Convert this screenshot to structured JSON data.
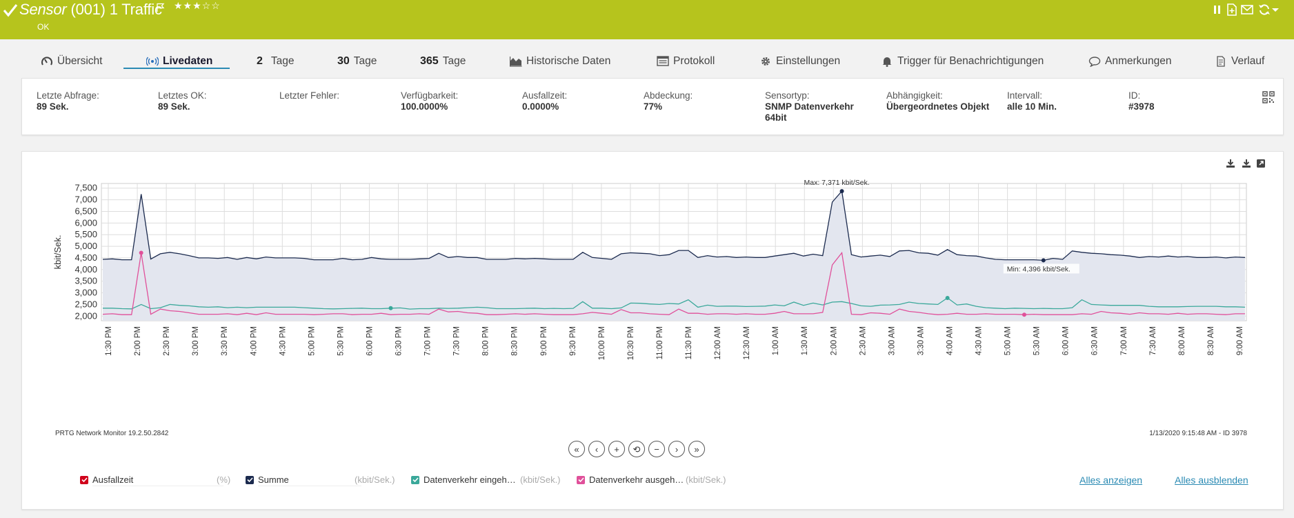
{
  "header": {
    "title_type": "Sensor",
    "title_name": "(001) 1 Traffic",
    "stars": "★★★☆☆",
    "status": "OK",
    "icons": [
      "check-icon",
      "flag-icon",
      "pause-icon",
      "add-page-icon",
      "mail-icon",
      "refresh-icon",
      "dropdown-caret-icon"
    ],
    "color": "#b6c41d"
  },
  "tabs": [
    {
      "label": "Übersicht",
      "icon": "gauge-icon"
    },
    {
      "label": "Livedaten",
      "icon": "live-icon",
      "active": true
    },
    {
      "num": "2",
      "label": "Tage"
    },
    {
      "num": "30",
      "label": "Tage"
    },
    {
      "num": "365",
      "label": "Tage"
    },
    {
      "label": "Historische Daten",
      "icon": "area-chart-icon"
    },
    {
      "label": "Protokoll",
      "icon": "log-icon"
    },
    {
      "label": "Einstellungen",
      "icon": "gear-icon"
    },
    {
      "label": "Trigger für Benachrichtigungen",
      "icon": "bell-icon"
    },
    {
      "label": "Anmerkungen",
      "icon": "comment-icon"
    },
    {
      "label": "Verlauf",
      "icon": "history-icon"
    }
  ],
  "info": [
    {
      "label": "Letzte Abfrage:",
      "value": "89 Sek."
    },
    {
      "label": "Letztes OK:",
      "value": "89 Sek."
    },
    {
      "label": "Letzter Fehler:",
      "value": ""
    },
    {
      "label": "Verfügbarkeit:",
      "value": "100.0000%"
    },
    {
      "label": "Ausfallzeit:",
      "value": "0.0000%"
    },
    {
      "label": "Abdeckung:",
      "value": "77%"
    },
    {
      "label": "Sensortyp:",
      "value": "SNMP Datenverkehr 64bit"
    },
    {
      "label": "Abhängigkeit:",
      "value": "Übergeordnetes Objekt"
    },
    {
      "label": "Intervall:",
      "value": "alle 10 Min."
    },
    {
      "label": "ID:",
      "value": "#3978"
    }
  ],
  "graph": {
    "footer_left": "PRTG Network Monitor 19.2.50.2842",
    "footer_right": "1/13/2020 9:15:48 AM - ID 3978",
    "nav_buttons": [
      "«",
      "‹",
      "+",
      "⟲",
      "−",
      "›",
      "»"
    ]
  },
  "legend": [
    {
      "name": "Ausfallzeit",
      "unit": "(%)",
      "color": "#d0021b"
    },
    {
      "name": "Summe",
      "unit": "(kbit/Sek.)",
      "color": "#1b2a4e"
    },
    {
      "name": "Datenverkehr eingeh…",
      "unit": "(kbit/Sek.)",
      "color": "#3aa89a"
    },
    {
      "name": "Datenverkehr ausgeh…",
      "unit": "(kbit/Sek.)",
      "color": "#e0509a"
    }
  ],
  "links": {
    "show_all": "Alles anzeigen",
    "hide_all": "Alles ausblenden"
  },
  "chart_data": {
    "type": "area",
    "ylabel": "kbit/Sek.",
    "ylim": [
      1800,
      7700
    ],
    "yticks": [
      2000,
      2500,
      3000,
      3500,
      4000,
      4500,
      5000,
      5500,
      6000,
      6500,
      7000,
      7500
    ],
    "ytick_labels": [
      "2,000",
      "2,500",
      "3,000",
      "3,500",
      "4,000",
      "4,500",
      "5,000",
      "5,500",
      "6,000",
      "6,500",
      "7,000",
      "7,500"
    ],
    "xticks": [
      "1:30 PM",
      "2:00 PM",
      "2:30 PM",
      "3:00 PM",
      "3:30 PM",
      "4:00 PM",
      "4:30 PM",
      "5:00 PM",
      "5:30 PM",
      "6:00 PM",
      "6:30 PM",
      "7:00 PM",
      "7:30 PM",
      "8:00 PM",
      "8:30 PM",
      "9:00 PM",
      "9:30 PM",
      "10:00 PM",
      "10:30 PM",
      "11:00 PM",
      "11:30 PM",
      "12:00 AM",
      "12:30 AM",
      "1:00 AM",
      "1:30 AM",
      "2:00 AM",
      "2:30 AM",
      "3:00 AM",
      "3:30 AM",
      "4:00 AM",
      "4:30 AM",
      "5:00 AM",
      "5:30 AM",
      "6:00 AM",
      "6:30 AM",
      "7:00 AM",
      "7:30 AM",
      "8:00 AM",
      "8:30 AM",
      "9:00 AM"
    ],
    "grid": true,
    "annotations": {
      "max": "Max: 7,371 kbit/Sek.",
      "min": "Min: 4,396 kbit/Sek."
    },
    "series": [
      {
        "name": "Summe",
        "color": "#1b2a4e",
        "fill": "#e3e6ef",
        "values": [
          4440,
          4460,
          4420,
          4420,
          7240,
          4450,
          4680,
          4740,
          4680,
          4600,
          4500,
          4500,
          4480,
          4520,
          4440,
          4520,
          4460,
          4540,
          4500,
          4500,
          4500,
          4480,
          4420,
          4420,
          4420,
          4480,
          4420,
          4440,
          4520,
          4460,
          4440,
          4440,
          4440,
          4460,
          4480,
          4700,
          4520,
          4560,
          4520,
          4520,
          4440,
          4440,
          4440,
          4480,
          4460,
          4480,
          4460,
          4440,
          4440,
          4440,
          4740,
          4520,
          4480,
          4440,
          4680,
          4720,
          4700,
          4680,
          4600,
          4640,
          4820,
          4820,
          4520,
          4600,
          4540,
          4560,
          4520,
          4540,
          4520,
          4520,
          4580,
          4640,
          4700,
          4580,
          4660,
          4600,
          6900,
          7371,
          4640,
          4540,
          4580,
          4620,
          4560,
          4800,
          4820,
          4720,
          4700,
          4620,
          4860,
          4640,
          4600,
          4580,
          4500,
          4440,
          4420,
          4420,
          4420,
          4420,
          4396,
          4480,
          4440,
          4800,
          4740,
          4700,
          4680,
          4640,
          4620,
          4580,
          4520,
          4560,
          4540,
          4580,
          4540,
          4560,
          4520,
          4520,
          4540,
          4500,
          4540,
          4520
        ]
      },
      {
        "name": "Datenverkehr eingehend",
        "color": "#3aa89a",
        "values": [
          2340,
          2340,
          2320,
          2310,
          2500,
          2320,
          2360,
          2500,
          2460,
          2440,
          2400,
          2380,
          2400,
          2360,
          2380,
          2360,
          2380,
          2380,
          2380,
          2380,
          2380,
          2360,
          2340,
          2320,
          2310,
          2320,
          2330,
          2340,
          2320,
          2320,
          2340,
          2350,
          2300,
          2320,
          2320,
          2340,
          2330,
          2340,
          2360,
          2380,
          2360,
          2320,
          2320,
          2320,
          2330,
          2340,
          2320,
          2330,
          2320,
          2330,
          2620,
          2340,
          2340,
          2320,
          2350,
          2560,
          2550,
          2520,
          2500,
          2540,
          2520,
          2700,
          2380,
          2470,
          2420,
          2430,
          2430,
          2410,
          2420,
          2430,
          2480,
          2440,
          2600,
          2460,
          2560,
          2480,
          2600,
          2620,
          2540,
          2440,
          2420,
          2470,
          2480,
          2500,
          2600,
          2540,
          2520,
          2500,
          2780,
          2480,
          2520,
          2420,
          2360,
          2340,
          2320,
          2340,
          2330,
          2320,
          2330,
          2320,
          2320,
          2360,
          2700,
          2500,
          2480,
          2460,
          2460,
          2460,
          2460,
          2420,
          2400,
          2400,
          2400,
          2410,
          2420,
          2420,
          2420,
          2400,
          2400,
          2380
        ]
      },
      {
        "name": "Datenverkehr ausgehend",
        "color": "#e0509a",
        "values": [
          2080,
          2100,
          2060,
          2060,
          4720,
          2080,
          2300,
          2230,
          2200,
          2140,
          2080,
          2080,
          2080,
          2100,
          2060,
          2120,
          2060,
          2140,
          2080,
          2080,
          2080,
          2080,
          2060,
          2080,
          2100,
          2100,
          2060,
          2080,
          2080,
          2120,
          2060,
          2080,
          2080,
          2100,
          2080,
          2300,
          2180,
          2200,
          2140,
          2120,
          2060,
          2060,
          2080,
          2100,
          2080,
          2100,
          2080,
          2060,
          2060,
          2060,
          2100,
          2160,
          2120,
          2080,
          2280,
          2140,
          2140,
          2100,
          2080,
          2060,
          2300,
          2120,
          2120,
          2080,
          2100,
          2100,
          2080,
          2100,
          2080,
          2080,
          2120,
          2200,
          2100,
          2100,
          2100,
          2160,
          4200,
          4720,
          2080,
          2060,
          2140,
          2120,
          2080,
          2300,
          2200,
          2160,
          2100,
          2060,
          2080,
          2120,
          2080,
          2080,
          2100,
          2080,
          2080,
          2080,
          2060,
          2080,
          2060,
          2060,
          2060,
          2060,
          2100,
          2080,
          2200,
          2140,
          2120,
          2080,
          2140,
          2100,
          2100,
          2080,
          2120,
          2080,
          2100,
          2100,
          2080,
          2060,
          2100,
          2100
        ]
      }
    ]
  }
}
